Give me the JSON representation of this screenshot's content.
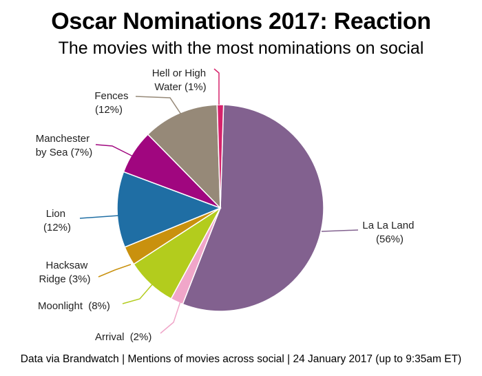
{
  "chart_data": {
    "type": "pie",
    "title": "Oscar Nominations 2017: Reaction",
    "subtitle": "The movies with the most nominations on social",
    "footer": "Data via Brandwatch | Mentions of movies across social | 24 January 2017 (up to 9:35am ET)",
    "slices": [
      {
        "label": "La La Land",
        "percent_label": "(56%)",
        "value": 56,
        "color": "#82618f"
      },
      {
        "label": "Arrival",
        "percent_label": "(2%)",
        "value": 2,
        "color": "#f0a6c9"
      },
      {
        "label": "Moonlight",
        "percent_label": "(8%)",
        "value": 8,
        "color": "#b3cc1d"
      },
      {
        "label": "Hacksaw Ridge",
        "percent_label": "(3%)",
        "value": 3,
        "color": "#c9910e"
      },
      {
        "label": "Lion",
        "percent_label": "(12%)",
        "value": 12,
        "color": "#1f6ea4"
      },
      {
        "label": "Manchester by Sea",
        "percent_label": "(7%)",
        "value": 7,
        "color": "#a0067f"
      },
      {
        "label": "Fences",
        "percent_label": "(12%)",
        "value": 12,
        "color": "#968978"
      },
      {
        "label": "Hell or High Water",
        "percent_label": "(1%)",
        "value": 1,
        "color": "#d6226b"
      }
    ]
  }
}
